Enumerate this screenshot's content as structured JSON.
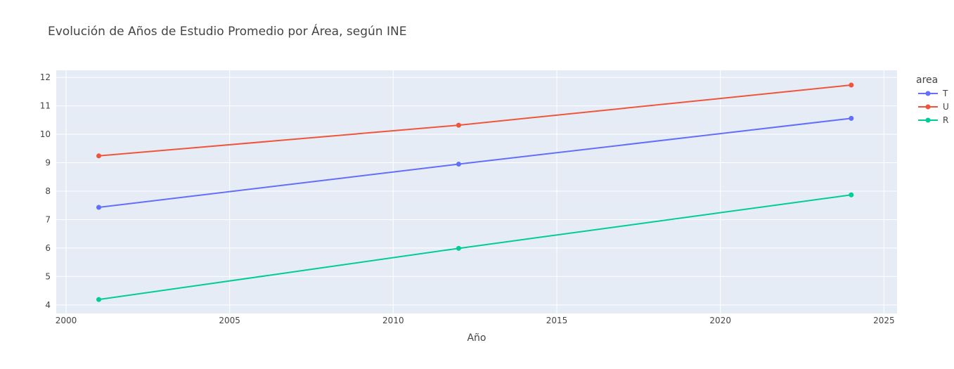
{
  "chart_data": {
    "type": "line",
    "title": "Evolución de Años de Estudio Promedio por Área, según INE",
    "xlabel": "Año",
    "ylabel": "",
    "xlim": [
      1999.7,
      2025.4
    ],
    "ylim": [
      3.7,
      12.25
    ],
    "x_ticks": [
      2000,
      2005,
      2010,
      2015,
      2020,
      2025
    ],
    "y_ticks": [
      4,
      5,
      6,
      7,
      8,
      9,
      10,
      11,
      12
    ],
    "grid": true,
    "legend": {
      "title": "area",
      "placement": "right"
    },
    "x": [
      2001,
      2012,
      2024
    ],
    "series": [
      {
        "name": "T",
        "color": "#636efa",
        "values": [
          7.43,
          8.95,
          10.56
        ]
      },
      {
        "name": "U",
        "color": "#ef553b",
        "values": [
          9.24,
          10.32,
          11.73
        ]
      },
      {
        "name": "R",
        "color": "#00cc96",
        "values": [
          4.19,
          5.99,
          7.87
        ]
      }
    ]
  }
}
